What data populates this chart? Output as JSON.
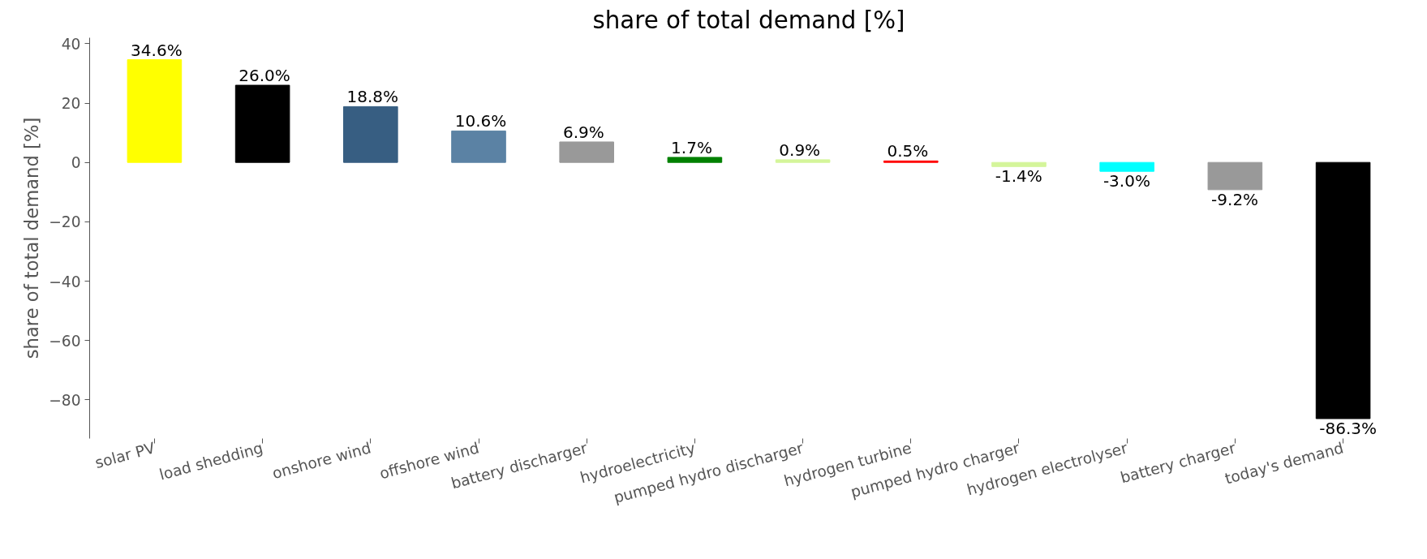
{
  "chart_data": {
    "type": "bar",
    "title": "share of total demand [%]",
    "ylabel": "share of total demand [%]",
    "categories": [
      "solar PV",
      "load shedding",
      "onshore wind",
      "offshore wind",
      "battery discharger",
      "hydroelectricity",
      "pumped hydro discharger",
      "hydrogen turbine",
      "pumped hydro charger",
      "hydrogen electrolyser",
      "battery charger",
      "today's demand"
    ],
    "values": [
      34.6,
      26.0,
      18.8,
      10.6,
      6.9,
      1.7,
      0.9,
      0.5,
      -1.4,
      -3.0,
      -9.2,
      -86.3
    ],
    "colors": [
      "#ffff00",
      "#000000",
      "#375e82",
      "#5b82a4",
      "#999999",
      "#008000",
      "#d4f59a",
      "#ff0000",
      "#d4f59a",
      "#00ffff",
      "#999999",
      "#000000"
    ],
    "value_labels": [
      "34.6%",
      "26.0%",
      "18.8%",
      "10.6%",
      "6.9%",
      "1.7%",
      "0.9%",
      "0.5%",
      "-1.4%",
      "-3.0%",
      "-9.2%",
      "-86.3%"
    ],
    "ylim": [
      -93,
      42
    ],
    "yticks": [
      -80,
      -60,
      -40,
      -20,
      0,
      20,
      40
    ],
    "grid": false
  }
}
